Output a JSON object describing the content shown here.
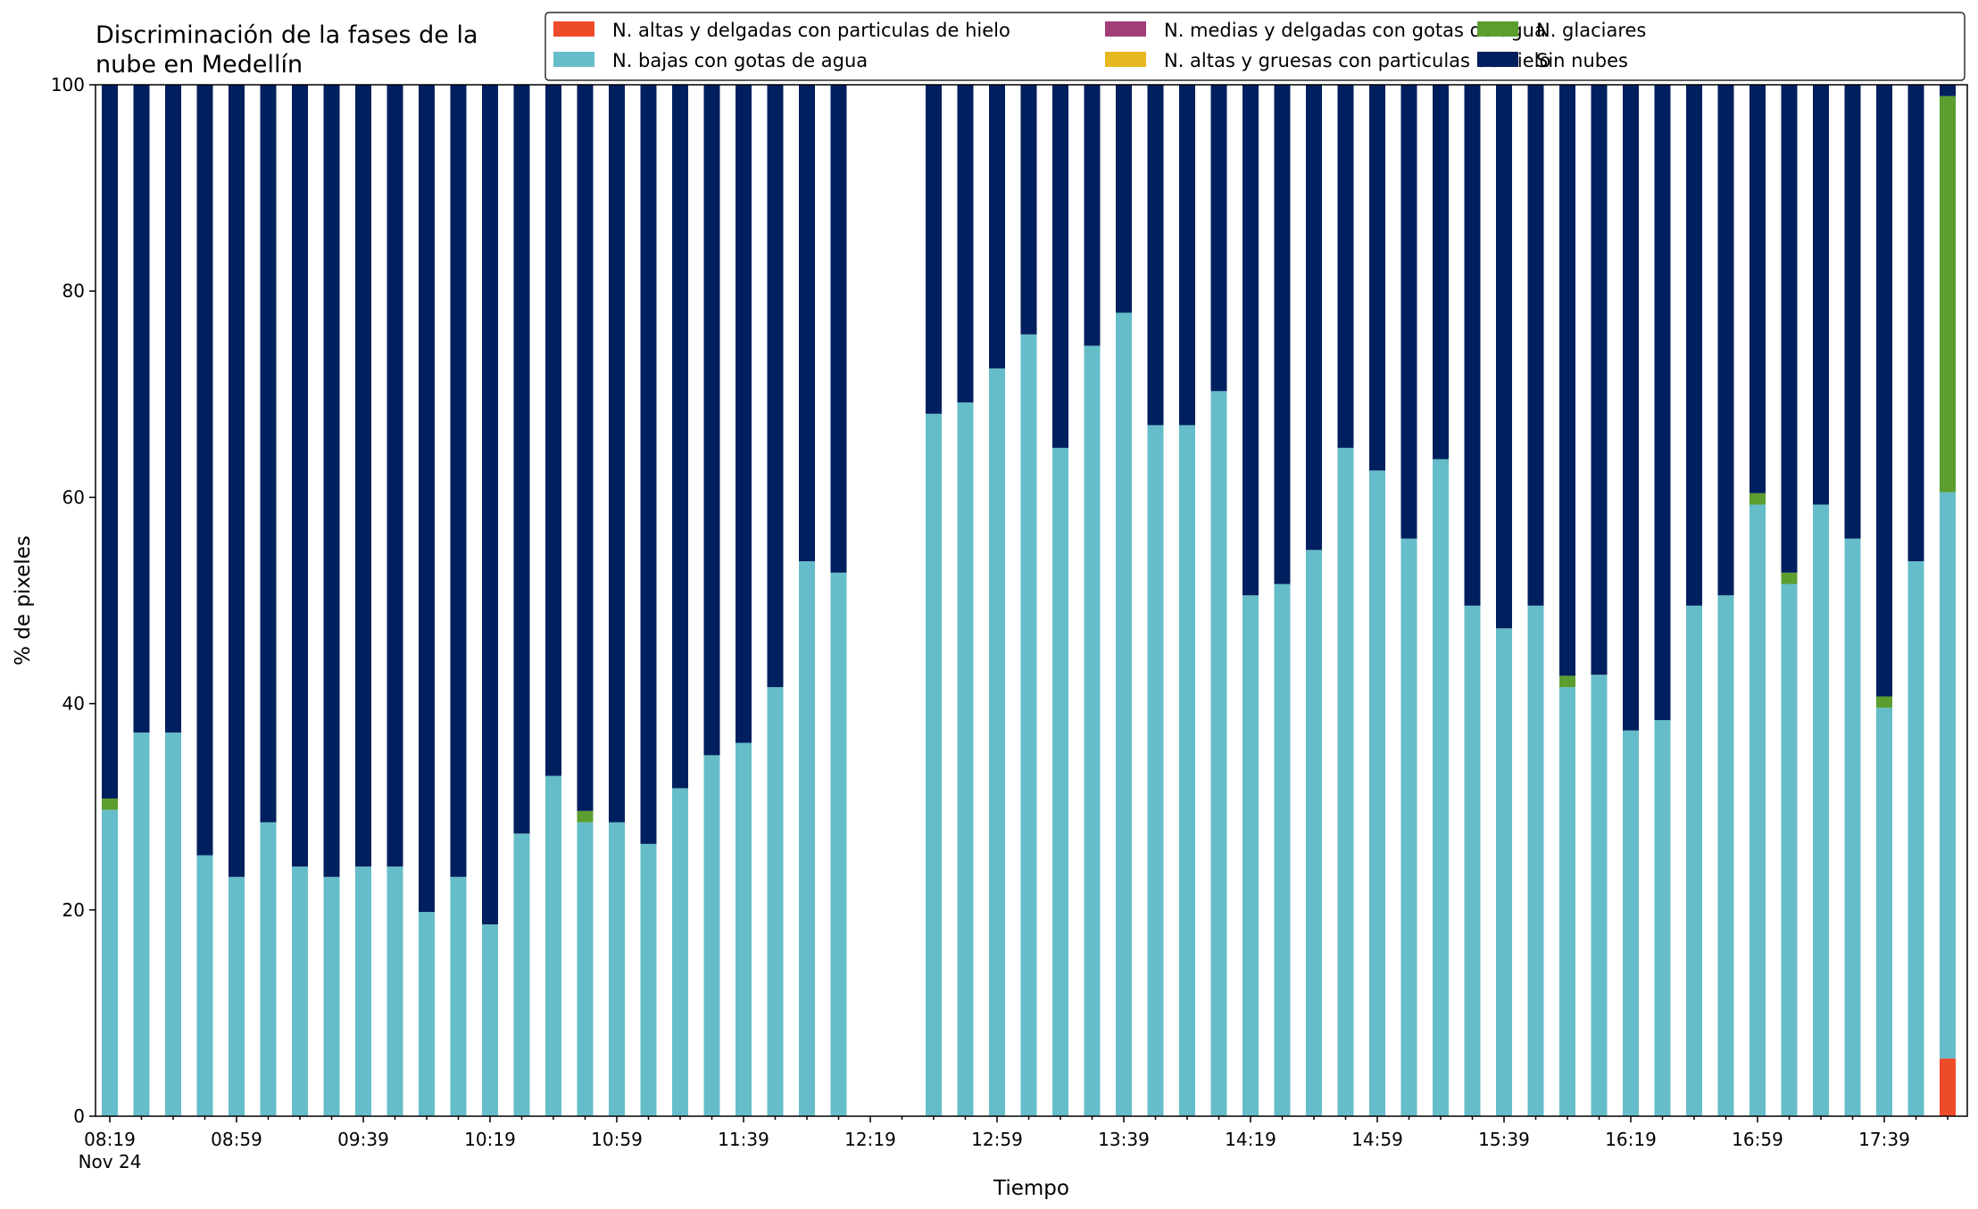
{
  "chart_data": {
    "type": "bar",
    "stacked": true,
    "title": "Discriminación de la fases de la\nnube en Medellín",
    "xlabel": "Tiempo",
    "ylabel": "% de pixeles",
    "ylim": [
      0,
      100
    ],
    "yticks": [
      0,
      20,
      40,
      60,
      80,
      100
    ],
    "grid": false,
    "legend_position": "top-right",
    "legend_columns": 3,
    "x_start": "08:19",
    "x_step_minutes": 10,
    "x_ticks_labeled": [
      "08:19",
      "08:59",
      "09:39",
      "10:19",
      "10:59",
      "11:39",
      "12:19",
      "12:59",
      "13:39",
      "14:19",
      "14:59",
      "15:39",
      "16:19",
      "16:59",
      "17:39"
    ],
    "x_date_label": "Nov 24",
    "categories": [
      "08:19",
      "08:29",
      "08:39",
      "08:49",
      "08:59",
      "09:09",
      "09:19",
      "09:29",
      "09:39",
      "09:49",
      "09:59",
      "10:09",
      "10:19",
      "10:29",
      "10:39",
      "10:49",
      "10:59",
      "11:09",
      "11:19",
      "11:29",
      "11:39",
      "11:49",
      "11:59",
      "12:09",
      "12:19",
      "12:29",
      "12:39",
      "12:49",
      "12:59",
      "13:09",
      "13:19",
      "13:29",
      "13:39",
      "13:49",
      "13:59",
      "14:09",
      "14:19",
      "14:29",
      "14:39",
      "14:49",
      "14:59",
      "15:09",
      "15:19",
      "15:29",
      "15:39",
      "15:49",
      "15:59",
      "16:09",
      "16:19",
      "16:29",
      "16:39",
      "16:49",
      "16:59",
      "17:09",
      "17:19",
      "17:29",
      "17:39",
      "17:49",
      "17:59"
    ],
    "series": [
      {
        "name": "N. altas y delgadas con particulas de hielo",
        "color": "#ee4b2b",
        "values": [
          0,
          0,
          0,
          0,
          0,
          0,
          0,
          0,
          0,
          0,
          0,
          0,
          0,
          0,
          0,
          0,
          0,
          0,
          0,
          0,
          0,
          0,
          0,
          0,
          null,
          null,
          0,
          0,
          0,
          0,
          0,
          0,
          0,
          0,
          0,
          0,
          0,
          0,
          0,
          0,
          0,
          0,
          0,
          0,
          0,
          0,
          0,
          0,
          0,
          0,
          0,
          0,
          0,
          0,
          0,
          0,
          0,
          0,
          5.6
        ]
      },
      {
        "name": "N. altas y gruesas con particulas de hielo",
        "color": "#e6b820",
        "values": [
          0,
          0,
          0,
          0,
          0,
          0,
          0,
          0,
          0,
          0,
          0,
          0,
          0,
          0,
          0,
          0,
          0,
          0,
          0,
          0,
          0,
          0,
          0,
          0,
          null,
          null,
          0,
          0,
          0,
          0,
          0,
          0,
          0,
          0,
          0,
          0,
          0,
          0,
          0,
          0,
          0,
          0,
          0,
          0,
          0,
          0,
          0,
          0,
          0,
          0,
          0,
          0,
          0,
          0,
          0,
          0,
          0,
          0,
          0
        ]
      },
      {
        "name": "N. bajas con gotas de agua",
        "color": "#66bdca",
        "values": [
          29.7,
          37.2,
          37.2,
          25.3,
          23.2,
          28.5,
          24.2,
          23.2,
          24.2,
          24.2,
          19.8,
          23.2,
          18.6,
          27.4,
          33.0,
          28.5,
          28.5,
          26.4,
          31.8,
          35.0,
          36.2,
          41.6,
          53.8,
          52.7,
          null,
          null,
          68.1,
          69.2,
          72.5,
          75.8,
          64.8,
          74.7,
          77.9,
          67.0,
          67.0,
          70.3,
          50.5,
          51.6,
          54.9,
          64.8,
          62.6,
          56.0,
          63.7,
          49.5,
          47.3,
          49.5,
          41.6,
          42.8,
          37.4,
          38.4,
          49.5,
          50.5,
          59.3,
          51.6,
          59.3,
          56.0,
          39.6,
          53.8,
          54.9
        ]
      },
      {
        "name": "N. glaciares",
        "color": "#5b9e2f",
        "values": [
          1.1,
          0,
          0,
          0,
          0,
          0,
          0,
          0,
          0,
          0,
          0,
          0,
          0,
          0,
          0,
          1.1,
          0,
          0,
          0,
          0,
          0,
          0,
          0,
          0,
          null,
          null,
          0,
          0,
          0,
          0,
          0,
          0,
          0,
          0,
          0,
          0,
          0,
          0,
          0,
          0,
          0,
          0,
          0,
          0,
          0,
          0,
          1.1,
          0,
          0,
          0,
          0,
          0,
          1.1,
          1.1,
          0,
          0,
          1.1,
          0,
          38.4
        ]
      },
      {
        "name": "N. medias y delgadas con gotas de agua",
        "color": "#a23d78",
        "values": [
          0,
          0,
          0,
          0,
          0,
          0,
          0,
          0,
          0,
          0,
          0,
          0,
          0,
          0,
          0,
          0,
          0,
          0,
          0,
          0,
          0,
          0,
          0,
          0,
          null,
          null,
          0,
          0,
          0,
          0,
          0,
          0,
          0,
          0,
          0,
          0,
          0,
          0,
          0,
          0,
          0,
          0,
          0,
          0,
          0,
          0,
          0,
          0,
          0,
          0,
          0,
          0,
          0,
          0,
          0,
          0,
          0,
          0,
          0
        ]
      },
      {
        "name": "Sin nubes",
        "color": "#001f5e",
        "values": [
          69.2,
          62.8,
          62.8,
          74.7,
          76.8,
          71.5,
          75.8,
          76.8,
          75.8,
          75.8,
          80.2,
          76.8,
          81.4,
          72.6,
          67.0,
          70.4,
          71.5,
          73.6,
          68.2,
          65.0,
          63.8,
          58.4,
          46.2,
          47.3,
          null,
          null,
          31.9,
          30.8,
          27.5,
          24.2,
          35.2,
          25.3,
          22.1,
          33.0,
          33.0,
          29.7,
          49.5,
          48.4,
          45.1,
          35.2,
          37.4,
          44.0,
          36.3,
          50.5,
          52.7,
          50.5,
          57.3,
          57.2,
          62.6,
          61.6,
          50.5,
          49.5,
          39.6,
          47.3,
          40.7,
          44.0,
          59.3,
          46.2,
          1.1
        ]
      }
    ]
  }
}
